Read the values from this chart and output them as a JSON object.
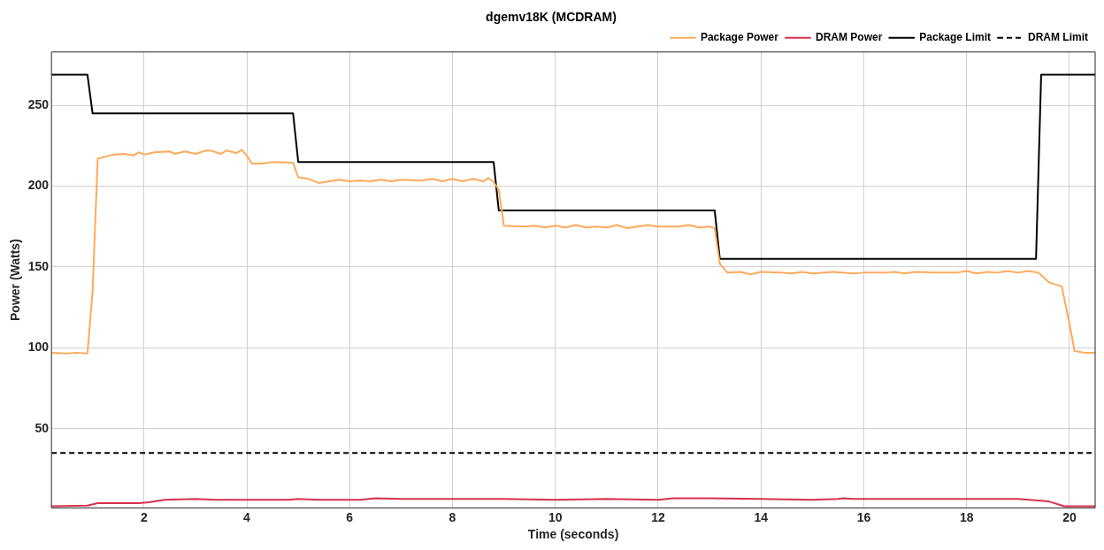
{
  "chart_data": {
    "type": "line",
    "title": "dgemv18K (MCDRAM)",
    "xlabel": "Time (seconds)",
    "ylabel": "Power (Watts)",
    "xlim": [
      0.2,
      20.5
    ],
    "xticks": [
      2,
      4,
      6,
      8,
      10,
      12,
      14,
      16,
      18,
      20
    ],
    "ylim": [
      1,
      283
    ],
    "yticks": [
      50,
      100,
      150,
      200,
      250
    ],
    "grid": true,
    "legend": "top right",
    "marker": "none",
    "series": [
      {
        "name": "Package Power",
        "color": "#fdaa5a",
        "line_style": "solid",
        "x": [
          0.2,
          0.5,
          0.7,
          0.9,
          1.0,
          1.1,
          1.4,
          1.6,
          1.8,
          1.9,
          2.0,
          2.2,
          2.5,
          2.6,
          2.8,
          3.0,
          3.2,
          3.3,
          3.5,
          3.6,
          3.8,
          3.9,
          4.0,
          4.1,
          4.3,
          4.5,
          4.9,
          5.0,
          5.2,
          5.4,
          5.6,
          5.8,
          6.0,
          6.2,
          6.4,
          6.6,
          6.8,
          7.0,
          7.4,
          7.6,
          7.8,
          8.0,
          8.2,
          8.4,
          8.6,
          8.7,
          8.8,
          8.9,
          9.0,
          9.4,
          9.6,
          9.8,
          10.0,
          10.2,
          10.4,
          10.6,
          10.8,
          11.0,
          11.2,
          11.4,
          11.6,
          11.8,
          12.0,
          12.4,
          12.6,
          12.8,
          13.0,
          13.1,
          13.2,
          13.35,
          13.6,
          13.8,
          14.0,
          14.4,
          14.6,
          14.8,
          15.0,
          15.4,
          15.8,
          16.0,
          16.4,
          16.6,
          16.8,
          17.0,
          17.4,
          17.8,
          18.0,
          18.2,
          18.4,
          18.6,
          18.8,
          19.0,
          19.2,
          19.4,
          19.6,
          19.85,
          20.0,
          20.1,
          20.3,
          20.5
        ],
        "values": [
          97,
          96.5,
          97,
          96.5,
          135,
          217,
          219.5,
          220,
          219,
          221,
          219.5,
          221,
          221.5,
          220,
          221.5,
          220,
          222,
          222,
          220,
          222,
          220.5,
          222.5,
          219,
          214,
          214,
          215,
          214.5,
          205.5,
          204.5,
          202,
          203,
          204,
          203,
          203.5,
          203,
          204,
          203,
          204,
          203.5,
          204.5,
          203,
          204.5,
          203,
          204.5,
          203,
          205,
          202.5,
          198,
          175.5,
          175,
          175.5,
          174.5,
          175.5,
          174.5,
          176,
          174.5,
          175,
          174.5,
          176,
          174,
          175,
          176,
          175,
          175,
          176,
          174.5,
          175,
          174,
          152,
          146.5,
          147,
          145.5,
          147,
          146.5,
          146,
          147,
          146,
          147,
          146,
          146.5,
          146.5,
          147,
          146,
          147,
          146.5,
          146.5,
          147.5,
          146,
          147,
          146.5,
          147.5,
          146.5,
          147.5,
          146.5,
          140.5,
          138,
          115,
          98,
          97,
          97
        ]
      },
      {
        "name": "DRAM Power",
        "color": "#d9304f",
        "line_style": "solid",
        "x": [
          0.2,
          0.9,
          1.1,
          1.6,
          1.9,
          2.1,
          2.4,
          3.0,
          3.4,
          4.0,
          4.8,
          5.0,
          5.4,
          6.2,
          6.5,
          7.0,
          8.0,
          9.0,
          10.0,
          11.0,
          12.0,
          12.3,
          13.0,
          14.0,
          15.0,
          15.5,
          15.6,
          15.8,
          17.0,
          18.0,
          19.0,
          19.6,
          19.9,
          20.5
        ],
        "values": [
          2,
          2.5,
          4,
          4,
          4,
          4.5,
          6,
          6.5,
          6,
          6,
          6,
          6.5,
          6,
          6,
          7,
          6.5,
          6.5,
          6.5,
          6,
          6.5,
          6,
          7,
          7,
          6.5,
          6,
          6.5,
          7,
          6.5,
          6.5,
          6.5,
          6.5,
          5,
          2,
          2
        ]
      },
      {
        "name": "Package Limit",
        "color": "#000000",
        "line_style": "solid",
        "x": [
          0.2,
          0.9,
          1.0,
          4.9,
          5.0,
          8.8,
          8.9,
          13.1,
          13.2,
          19.35,
          19.45,
          20.5
        ],
        "values": [
          269,
          269,
          245,
          245,
          215,
          215,
          185,
          185,
          155,
          155,
          269,
          269
        ]
      },
      {
        "name": "DRAM Limit",
        "color": "#000000",
        "line_style": "dashed",
        "x": [
          0.2,
          20.5
        ],
        "values": [
          35,
          35
        ]
      }
    ]
  }
}
